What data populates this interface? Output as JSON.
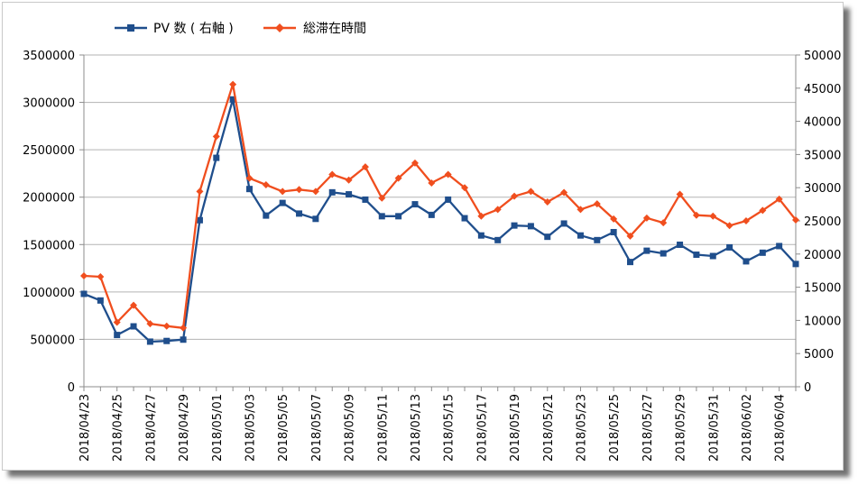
{
  "chart_data": {
    "type": "line",
    "x": [
      "2018/04/23",
      "2018/04/24",
      "2018/04/25",
      "2018/04/26",
      "2018/04/27",
      "2018/04/28",
      "2018/04/29",
      "2018/04/30",
      "2018/05/01",
      "2018/05/02",
      "2018/05/03",
      "2018/05/04",
      "2018/05/05",
      "2018/05/06",
      "2018/05/07",
      "2018/05/08",
      "2018/05/09",
      "2018/05/10",
      "2018/05/11",
      "2018/05/12",
      "2018/05/13",
      "2018/05/14",
      "2018/05/15",
      "2018/05/16",
      "2018/05/17",
      "2018/05/18",
      "2018/05/19",
      "2018/05/20",
      "2018/05/21",
      "2018/05/22",
      "2018/05/23",
      "2018/05/24",
      "2018/05/25",
      "2018/05/26",
      "2018/05/27",
      "2018/05/28",
      "2018/05/29",
      "2018/05/30",
      "2018/05/31",
      "2018/06/01",
      "2018/06/02",
      "2018/06/03",
      "2018/06/04",
      "2018/06/05"
    ],
    "x_tick_labels": [
      "2018/04/23",
      "2018/04/25",
      "2018/04/27",
      "2018/04/29",
      "2018/05/01",
      "2018/05/03",
      "2018/05/05",
      "2018/05/07",
      "2018/05/09",
      "2018/05/11",
      "2018/05/13",
      "2018/05/15",
      "2018/05/17",
      "2018/05/19",
      "2018/05/21",
      "2018/05/23",
      "2018/05/25",
      "2018/05/27",
      "2018/05/29",
      "2018/05/31",
      "2018/06/02",
      "2018/06/04"
    ],
    "series": [
      {
        "name": "PV 数 ( 右軸 )",
        "axis": "right",
        "color": "#1f4e8c",
        "marker": "square",
        "values": [
          14000,
          13000,
          7800,
          9100,
          6800,
          6900,
          7100,
          25100,
          34500,
          43300,
          29800,
          25800,
          27700,
          26100,
          25300,
          29300,
          29000,
          28200,
          25700,
          25700,
          27500,
          25900,
          28200,
          25400,
          22800,
          22100,
          24300,
          24200,
          22600,
          24600,
          22800,
          22100,
          23300,
          18800,
          20500,
          20100,
          21400,
          19900,
          19700,
          21000,
          18900,
          20200,
          21200,
          18500
        ]
      },
      {
        "name": "総滞在時間",
        "axis": "left",
        "color": "#f04e1e",
        "marker": "diamond",
        "values": [
          1170000,
          1160000,
          680000,
          860000,
          665000,
          640000,
          620000,
          2060000,
          2640000,
          3190000,
          2200000,
          2130000,
          2060000,
          2080000,
          2060000,
          2240000,
          2180000,
          2320000,
          1990000,
          2200000,
          2360000,
          2150000,
          2240000,
          2100000,
          1800000,
          1870000,
          2010000,
          2060000,
          1950000,
          2050000,
          1870000,
          1930000,
          1770000,
          1590000,
          1780000,
          1730000,
          2030000,
          1810000,
          1800000,
          1700000,
          1750000,
          1860000,
          1980000,
          1760000
        ]
      }
    ],
    "y_left": {
      "ticks": [
        "0",
        "500000",
        "1000000",
        "1500000",
        "2000000",
        "2500000",
        "3000000",
        "3500000"
      ],
      "ylim": [
        0,
        3500000
      ]
    },
    "y_right": {
      "ticks": [
        "0",
        "5000",
        "10000",
        "15000",
        "20000",
        "25000",
        "30000",
        "35000",
        "40000",
        "45000",
        "50000"
      ],
      "ylim": [
        0,
        50000
      ]
    },
    "grid": true,
    "legend_position": "top"
  }
}
